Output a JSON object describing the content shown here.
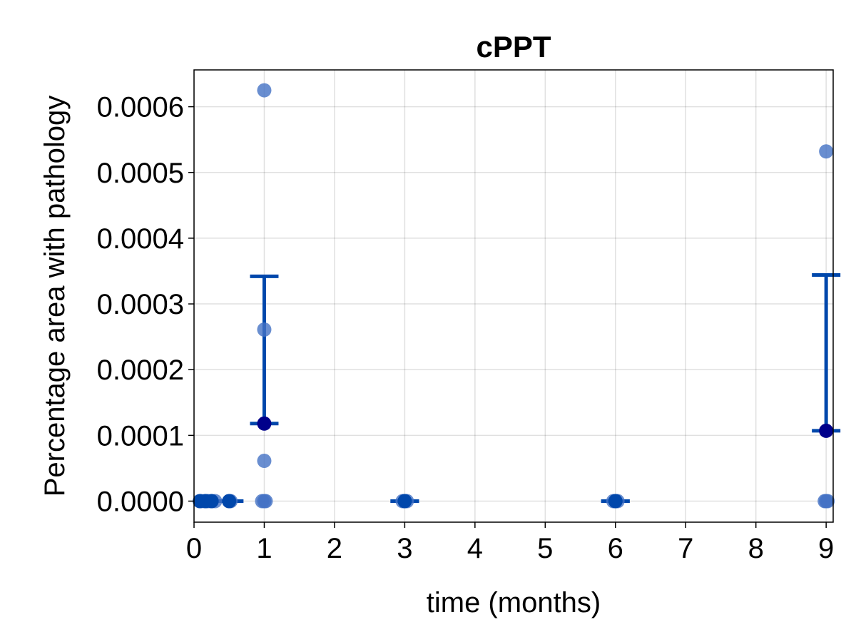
{
  "chart_data": {
    "type": "scatter",
    "title": "cPPT",
    "xlabel": "time (months)",
    "ylabel": "Percentage area with pathology",
    "xlim": [
      0,
      9.1
    ],
    "ylim": [
      -3.2e-05,
      0.000656
    ],
    "xticks": [
      0,
      1,
      2,
      3,
      4,
      5,
      6,
      7,
      8,
      9
    ],
    "xtick_labels": [
      "0",
      "1",
      "2",
      "3",
      "4",
      "5",
      "6",
      "7",
      "8",
      "9"
    ],
    "yticks": [
      0,
      0.0001,
      0.0002,
      0.0003,
      0.0004,
      0.0005,
      0.0006
    ],
    "ytick_labels": [
      "0.0000",
      "0.0001",
      "0.0002",
      "0.0003",
      "0.0004",
      "0.0005",
      "0.0006"
    ],
    "grid": true,
    "colors": {
      "points": "#4472c4",
      "mean": "#00008b",
      "errorbar": "#0047ab"
    },
    "points": [
      {
        "x": 0.1,
        "y": 0
      },
      {
        "x": 0.15,
        "y": 0
      },
      {
        "x": 0.2,
        "y": 0
      },
      {
        "x": 0.25,
        "y": 0
      },
      {
        "x": 0.3,
        "y": 0
      },
      {
        "x": 0.5,
        "y": 0
      },
      {
        "x": 0.52,
        "y": 0
      },
      {
        "x": 0.97,
        "y": 0
      },
      {
        "x": 1.0,
        "y": 0
      },
      {
        "x": 1.02,
        "y": 0
      },
      {
        "x": 1.0,
        "y": 6.13e-05
      },
      {
        "x": 1.0,
        "y": 0.000261
      },
      {
        "x": 1.0,
        "y": 0.000625
      },
      {
        "x": 2.97,
        "y": 0
      },
      {
        "x": 3.0,
        "y": 0
      },
      {
        "x": 3.03,
        "y": 0
      },
      {
        "x": 5.97,
        "y": 0
      },
      {
        "x": 6.0,
        "y": 0
      },
      {
        "x": 6.03,
        "y": 0
      },
      {
        "x": 8.98,
        "y": 0
      },
      {
        "x": 9.0,
        "y": 0
      },
      {
        "x": 9.02,
        "y": 0
      },
      {
        "x": 9.0,
        "y": 0.000532
      }
    ],
    "means": [
      {
        "x": 0.083,
        "y": 0
      },
      {
        "x": 0.167,
        "y": 0
      },
      {
        "x": 0.25,
        "y": 0
      },
      {
        "x": 0.5,
        "y": 0
      },
      {
        "x": 1,
        "y": 0.000118
      },
      {
        "x": 3,
        "y": 0
      },
      {
        "x": 6,
        "y": 0
      },
      {
        "x": 9,
        "y": 0.000107
      }
    ],
    "errorbars": [
      {
        "x": 0.5,
        "low": 0,
        "high": 0
      },
      {
        "x": 1,
        "low": 0.000118,
        "high": 0.000342
      },
      {
        "x": 3,
        "low": 0,
        "high": 0
      },
      {
        "x": 6,
        "low": 0,
        "high": 0
      },
      {
        "x": 9,
        "low": 0.000107,
        "high": 0.000344
      }
    ]
  }
}
